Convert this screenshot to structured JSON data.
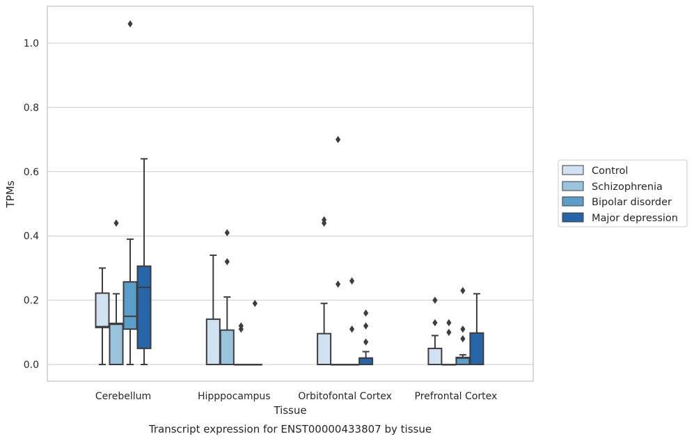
{
  "chart_data": {
    "type": "boxplot",
    "title": "",
    "caption": "Transcript expression for ENST00000433807 by tissue",
    "xlabel": "Tissue",
    "ylabel": "TPMs",
    "ylim": [
      -0.05,
      1.12
    ],
    "yticks": [
      0.0,
      0.2,
      0.4,
      0.6,
      0.8,
      1.0
    ],
    "ytick_labels": [
      "0.0",
      "0.2",
      "0.4",
      "0.6",
      "0.8",
      "1.0"
    ],
    "grid": "horizontal",
    "legend_position": "right",
    "categories": [
      "Cerebellum",
      "Hipppocampus",
      "Orbitofontal Cortex",
      "Prefrontal Cortex"
    ],
    "series": [
      {
        "name": "Control",
        "color": "#d0e1f2",
        "boxes": [
          {
            "whisker_low": 0.0,
            "q1": 0.115,
            "median": 0.118,
            "q3": 0.222,
            "whisker_high": 0.3,
            "outliers": []
          },
          {
            "whisker_low": 0.0,
            "q1": 0.0,
            "median": 0.0,
            "q3": 0.141,
            "whisker_high": 0.34,
            "outliers": []
          },
          {
            "whisker_low": 0.0,
            "q1": 0.0,
            "median": 0.0,
            "q3": 0.096,
            "whisker_high": 0.19,
            "outliers": [
              0.44,
              0.45
            ]
          },
          {
            "whisker_low": 0.0,
            "q1": 0.0,
            "median": 0.0,
            "q3": 0.05,
            "whisker_high": 0.09,
            "outliers": [
              0.13,
              0.2
            ]
          }
        ]
      },
      {
        "name": "Schizophrenia",
        "color": "#9ac4de",
        "boxes": [
          {
            "whisker_low": 0.0,
            "q1": 0.0,
            "median": 0.125,
            "q3": 0.128,
            "whisker_high": 0.22,
            "outliers": [
              0.44
            ]
          },
          {
            "whisker_low": 0.0,
            "q1": 0.0,
            "median": 0.0,
            "q3": 0.107,
            "whisker_high": 0.21,
            "outliers": [
              0.32,
              0.41
            ]
          },
          {
            "whisker_low": 0.0,
            "q1": 0.0,
            "median": 0.0,
            "q3": 0.0,
            "whisker_high": 0.0,
            "outliers": [
              0.25,
              0.7
            ]
          },
          {
            "whisker_low": 0.0,
            "q1": 0.0,
            "median": 0.0,
            "q3": 0.0,
            "whisker_high": 0.0,
            "outliers": [
              0.1,
              0.13
            ]
          }
        ]
      },
      {
        "name": "Bipolar disorder",
        "color": "#5a9ec9",
        "boxes": [
          {
            "whisker_low": 0.0,
            "q1": 0.11,
            "median": 0.15,
            "q3": 0.257,
            "whisker_high": 0.39,
            "outliers": [
              1.06
            ]
          },
          {
            "whisker_low": 0.0,
            "q1": 0.0,
            "median": 0.0,
            "q3": 0.0,
            "whisker_high": 0.0,
            "outliers": [
              0.11,
              0.12
            ]
          },
          {
            "whisker_low": 0.0,
            "q1": 0.0,
            "median": 0.0,
            "q3": 0.0,
            "whisker_high": 0.0,
            "outliers": [
              0.11,
              0.26
            ]
          },
          {
            "whisker_low": 0.0,
            "q1": 0.0,
            "median": 0.02,
            "q3": 0.022,
            "whisker_high": 0.03,
            "outliers": [
              0.08,
              0.11,
              0.23
            ]
          }
        ]
      },
      {
        "name": "Major depression",
        "color": "#2565a8",
        "boxes": [
          {
            "whisker_low": 0.0,
            "q1": 0.05,
            "median": 0.24,
            "q3": 0.306,
            "whisker_high": 0.64,
            "outliers": []
          },
          {
            "whisker_low": 0.0,
            "q1": 0.0,
            "median": 0.0,
            "q3": 0.0,
            "whisker_high": 0.0,
            "outliers": [
              0.19
            ]
          },
          {
            "whisker_low": 0.0,
            "q1": 0.0,
            "median": 0.02,
            "q3": 0.02,
            "whisker_high": 0.04,
            "outliers": [
              0.07,
              0.12,
              0.16
            ]
          },
          {
            "whisker_low": 0.0,
            "q1": 0.0,
            "median": 0.0,
            "q3": 0.098,
            "whisker_high": 0.22,
            "outliers": []
          }
        ]
      }
    ]
  },
  "colors": {
    "box_edge": "#3d3d3d",
    "grid": "#cccccc",
    "frame": "#cccccc",
    "text": "#262626"
  }
}
